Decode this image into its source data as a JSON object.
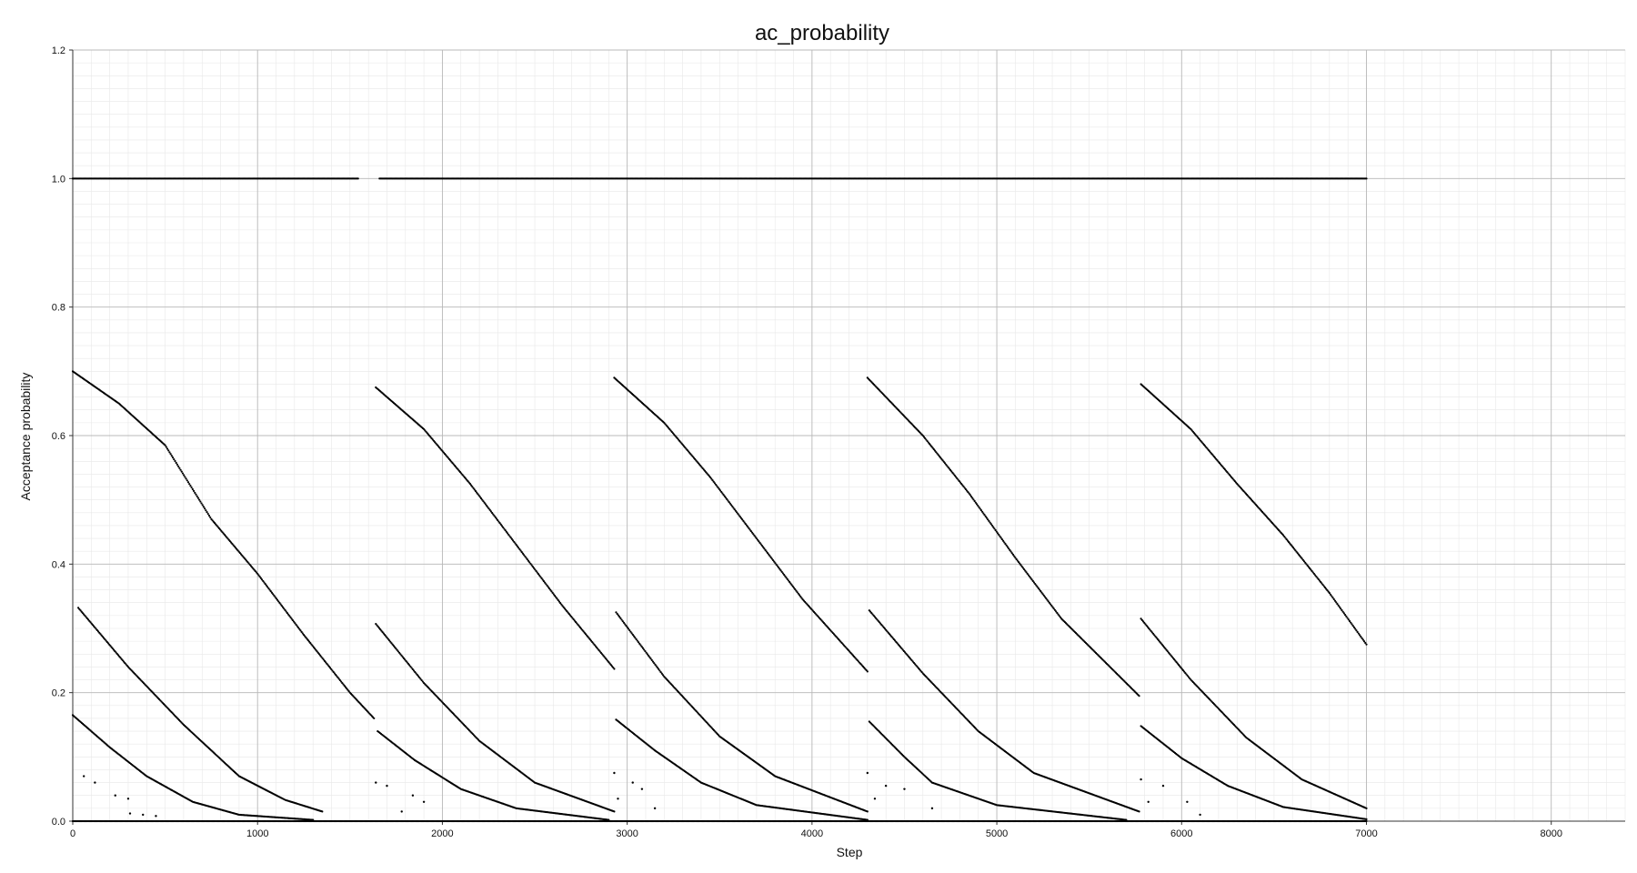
{
  "chart_data": {
    "type": "scatter",
    "title": "ac_probability",
    "xlabel": "Step",
    "ylabel": "Acceptance probability",
    "xlim": [
      0,
      8400
    ],
    "ylim": [
      0,
      1.2
    ],
    "xticks": [
      0,
      1000,
      2000,
      3000,
      4000,
      5000,
      6000,
      7000,
      8000
    ],
    "xtick_labels": [
      "0",
      "1000",
      "2000",
      "3000",
      "4000",
      "5000",
      "6000",
      "7000",
      "8000"
    ],
    "yticks": [
      0.0,
      0.2,
      0.4,
      0.6,
      0.8,
      1.0,
      1.2
    ],
    "ytick_labels": [
      "0.0",
      "0.2",
      "0.4",
      "0.6",
      "0.8",
      "1.0",
      "1.2"
    ],
    "grid": true,
    "minor_grid": true,
    "marker_color": "#000000",
    "series": [
      {
        "points": [
          [
            0,
            1.0
          ],
          [
            500,
            1.0
          ],
          [
            1000,
            1.0
          ],
          [
            1500,
            1.0
          ],
          [
            1550,
            1.0
          ],
          [
            1600,
            1.0
          ],
          [
            1660,
            1.0
          ],
          [
            2000,
            1.0
          ],
          [
            2500,
            1.0
          ],
          [
            3000,
            1.0
          ],
          [
            3500,
            1.0
          ],
          [
            4000,
            1.0
          ],
          [
            4500,
            1.0
          ],
          [
            5000,
            1.0
          ],
          [
            5500,
            1.0
          ],
          [
            6000,
            1.0
          ],
          [
            6500,
            1.0
          ],
          [
            7000,
            1.0
          ]
        ]
      },
      {
        "points": [
          [
            0,
            0.0
          ],
          [
            1000,
            0.0
          ],
          [
            2000,
            0.0
          ],
          [
            3000,
            0.0
          ],
          [
            4000,
            0.0
          ],
          [
            5000,
            0.0
          ],
          [
            6000,
            0.0
          ],
          [
            7000,
            0.0
          ]
        ]
      },
      {
        "points": [
          [
            0,
            0.7
          ],
          [
            250,
            0.65
          ],
          [
            500,
            0.585
          ],
          [
            750,
            0.47
          ],
          [
            1000,
            0.385
          ],
          [
            1250,
            0.29
          ],
          [
            1500,
            0.2
          ],
          [
            1630,
            0.16
          ]
        ]
      },
      {
        "points": [
          [
            1640,
            0.675
          ],
          [
            1900,
            0.61
          ],
          [
            2150,
            0.525
          ],
          [
            2400,
            0.43
          ],
          [
            2650,
            0.335
          ],
          [
            2930,
            0.237
          ]
        ]
      },
      {
        "points": [
          [
            2930,
            0.69
          ],
          [
            3200,
            0.62
          ],
          [
            3450,
            0.535
          ],
          [
            3700,
            0.44
          ],
          [
            3950,
            0.345
          ],
          [
            4300,
            0.233
          ]
        ]
      },
      {
        "points": [
          [
            4300,
            0.69
          ],
          [
            4600,
            0.6
          ],
          [
            4850,
            0.51
          ],
          [
            5100,
            0.41
          ],
          [
            5350,
            0.315
          ],
          [
            5770,
            0.195
          ]
        ]
      },
      {
        "points": [
          [
            5780,
            0.68
          ],
          [
            6050,
            0.61
          ],
          [
            6300,
            0.525
          ],
          [
            6550,
            0.445
          ],
          [
            6800,
            0.355
          ],
          [
            7000,
            0.275
          ]
        ]
      },
      {
        "points": [
          [
            30,
            0.332
          ],
          [
            300,
            0.24
          ],
          [
            600,
            0.15
          ],
          [
            900,
            0.07
          ],
          [
            1150,
            0.033
          ],
          [
            1350,
            0.015
          ]
        ]
      },
      {
        "points": [
          [
            1640,
            0.307
          ],
          [
            1900,
            0.215
          ],
          [
            2200,
            0.125
          ],
          [
            2500,
            0.06
          ],
          [
            2930,
            0.015
          ]
        ]
      },
      {
        "points": [
          [
            2940,
            0.325
          ],
          [
            3200,
            0.225
          ],
          [
            3500,
            0.132
          ],
          [
            3800,
            0.07
          ],
          [
            4300,
            0.015
          ]
        ]
      },
      {
        "points": [
          [
            4310,
            0.328
          ],
          [
            4600,
            0.23
          ],
          [
            4900,
            0.14
          ],
          [
            5200,
            0.075
          ],
          [
            5770,
            0.015
          ]
        ]
      },
      {
        "points": [
          [
            5780,
            0.315
          ],
          [
            6050,
            0.22
          ],
          [
            6350,
            0.13
          ],
          [
            6650,
            0.065
          ],
          [
            7000,
            0.02
          ]
        ]
      },
      {
        "points": [
          [
            0,
            0.165
          ],
          [
            200,
            0.115
          ],
          [
            400,
            0.07
          ],
          [
            650,
            0.03
          ],
          [
            900,
            0.01
          ],
          [
            1300,
            0.002
          ]
        ]
      },
      {
        "points": [
          [
            1650,
            0.14
          ],
          [
            1850,
            0.095
          ],
          [
            2100,
            0.05
          ],
          [
            2400,
            0.02
          ],
          [
            2900,
            0.002
          ]
        ]
      },
      {
        "points": [
          [
            2940,
            0.158
          ],
          [
            3150,
            0.11
          ],
          [
            3400,
            0.06
          ],
          [
            3700,
            0.025
          ],
          [
            4300,
            0.002
          ]
        ]
      },
      {
        "points": [
          [
            4310,
            0.155
          ],
          [
            4500,
            0.1
          ],
          [
            4650,
            0.06
          ],
          [
            5000,
            0.025
          ],
          [
            5700,
            0.002
          ]
        ]
      },
      {
        "points": [
          [
            5780,
            0.148
          ],
          [
            6000,
            0.098
          ],
          [
            6250,
            0.055
          ],
          [
            6550,
            0.022
          ],
          [
            7000,
            0.003
          ]
        ]
      },
      {
        "points": [
          [
            60,
            0.07
          ],
          [
            120,
            0.06
          ],
          [
            230,
            0.04
          ],
          [
            300,
            0.035
          ],
          [
            310,
            0.012
          ],
          [
            380,
            0.01
          ],
          [
            450,
            0.008
          ],
          [
            1640,
            0.06
          ],
          [
            1700,
            0.055
          ],
          [
            1780,
            0.015
          ],
          [
            1840,
            0.04
          ],
          [
            1900,
            0.03
          ],
          [
            2930,
            0.075
          ],
          [
            2950,
            0.035
          ],
          [
            3030,
            0.06
          ],
          [
            3080,
            0.05
          ],
          [
            3150,
            0.02
          ],
          [
            4300,
            0.075
          ],
          [
            4340,
            0.035
          ],
          [
            4400,
            0.055
          ],
          [
            4500,
            0.05
          ],
          [
            4650,
            0.02
          ],
          [
            5780,
            0.065
          ],
          [
            5820,
            0.03
          ],
          [
            5900,
            0.055
          ],
          [
            6030,
            0.03
          ],
          [
            6100,
            0.01
          ]
        ]
      }
    ]
  }
}
